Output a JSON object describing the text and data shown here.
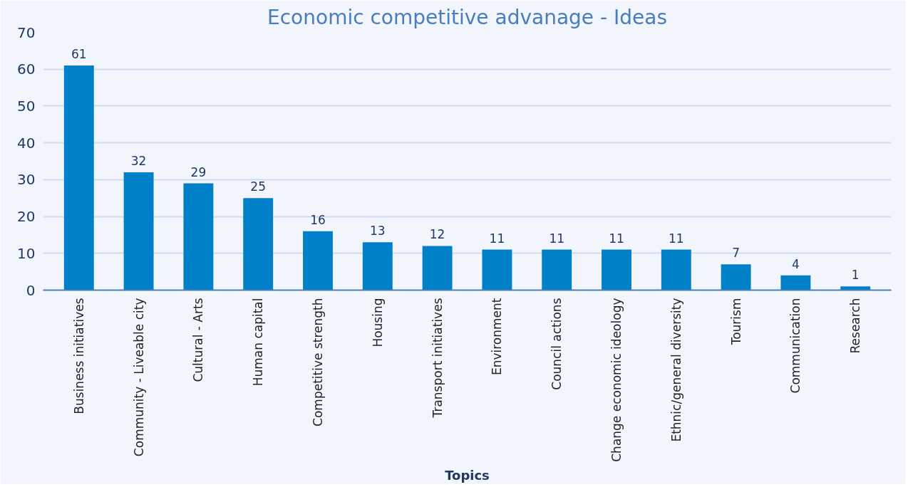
{
  "chart_data": {
    "type": "bar",
    "title": "Economic competitive advanage - Ideas",
    "xlabel": "Topics",
    "categories": [
      "Business initiatives",
      "Community - Liveable city",
      "Cultural - Arts",
      "Human capital",
      "Competitive strength",
      "Housing",
      "Transport initiatives",
      "Environment",
      "Council actions",
      "Change economic ideology",
      "Ethnic/general diversity",
      "Tourism",
      "Communication",
      "Research"
    ],
    "values": [
      61,
      32,
      29,
      25,
      16,
      13,
      12,
      11,
      11,
      11,
      11,
      7,
      4,
      1
    ],
    "color": "#0080c8",
    "ylim": [
      0,
      70
    ],
    "yticks": [
      0,
      10,
      20,
      30,
      40,
      50,
      60,
      70
    ],
    "grid": "y",
    "data_labels": true
  }
}
